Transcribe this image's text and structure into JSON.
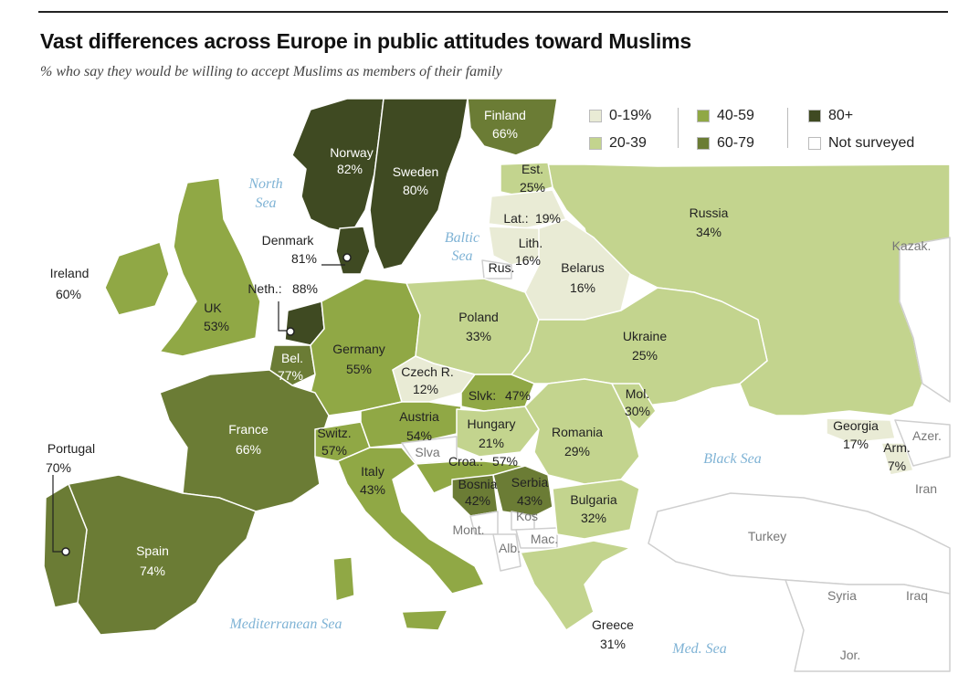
{
  "title": "Vast differences across Europe in public attitudes toward Muslims",
  "subtitle": "% who say they would be willing to accept Muslims as members of their family",
  "colors": {
    "c0": "#e9ebd5",
    "c20": "#c3d48e",
    "c40": "#90a845",
    "c60": "#6b7c35",
    "c80": "#3f4a22",
    "none": "#ffffff",
    "sea_text": "#7fb3d5",
    "border": "#ffffff"
  },
  "legend": {
    "items": [
      {
        "label": "0-19%",
        "color": "#e9ebd5"
      },
      {
        "label": "20-39",
        "color": "#c3d48e"
      },
      {
        "label": "40-59",
        "color": "#90a845"
      },
      {
        "label": "60-79",
        "color": "#6b7c35"
      },
      {
        "label": "80+",
        "color": "#3f4a22"
      },
      {
        "label": "Not surveyed",
        "color": "#ffffff"
      }
    ]
  },
  "countries": [
    {
      "name": "Norway",
      "value": "82%"
    },
    {
      "name": "Sweden",
      "value": "80%"
    },
    {
      "name": "Finland",
      "value": "66%"
    },
    {
      "name": "Denmark",
      "value": "81%"
    },
    {
      "name": "Est.",
      "value": "25%"
    },
    {
      "name": "Lat.:",
      "value": "19%"
    },
    {
      "name": "Lith.",
      "value": "16%"
    },
    {
      "name": "Russia",
      "value": "34%"
    },
    {
      "name": "Belarus",
      "value": "16%"
    },
    {
      "name": "Ireland",
      "value": "60%"
    },
    {
      "name": "UK",
      "value": "53%"
    },
    {
      "name": "Neth.:",
      "value": "88%"
    },
    {
      "name": "Bel.",
      "value": "77%"
    },
    {
      "name": "Germany",
      "value": "55%"
    },
    {
      "name": "Poland",
      "value": "33%"
    },
    {
      "name": "Ukraine",
      "value": "25%"
    },
    {
      "name": "Czech R.",
      "value": "12%"
    },
    {
      "name": "Slvk:",
      "value": "47%"
    },
    {
      "name": "France",
      "value": "66%"
    },
    {
      "name": "Austria",
      "value": "54%"
    },
    {
      "name": "Hungary",
      "value": "21%"
    },
    {
      "name": "Switz.",
      "value": "57%"
    },
    {
      "name": "Croa.:",
      "value": "57%"
    },
    {
      "name": "Romania",
      "value": "29%"
    },
    {
      "name": "Mol.",
      "value": "30%"
    },
    {
      "name": "Italy",
      "value": "43%"
    },
    {
      "name": "Bosnia",
      "value": "42%"
    },
    {
      "name": "Serbia",
      "value": "43%"
    },
    {
      "name": "Bulgaria",
      "value": "32%"
    },
    {
      "name": "Portugal",
      "value": "70%"
    },
    {
      "name": "Spain",
      "value": "74%"
    },
    {
      "name": "Greece",
      "value": "31%"
    },
    {
      "name": "Georgia",
      "value": "17%"
    },
    {
      "name": "Arm.",
      "value": "7%"
    }
  ],
  "not_surveyed_labels": [
    "Rus.",
    "Slva",
    "Mont.",
    "Kos",
    "Mac.",
    "Alb.",
    "Kazak.",
    "Azer.",
    "Iran",
    "Turkey",
    "Syria",
    "Iraq",
    "Jor."
  ],
  "seas": [
    "North Sea",
    "Baltic Sea",
    "Black Sea",
    "Mediterranean Sea",
    "Med. Sea"
  ]
}
